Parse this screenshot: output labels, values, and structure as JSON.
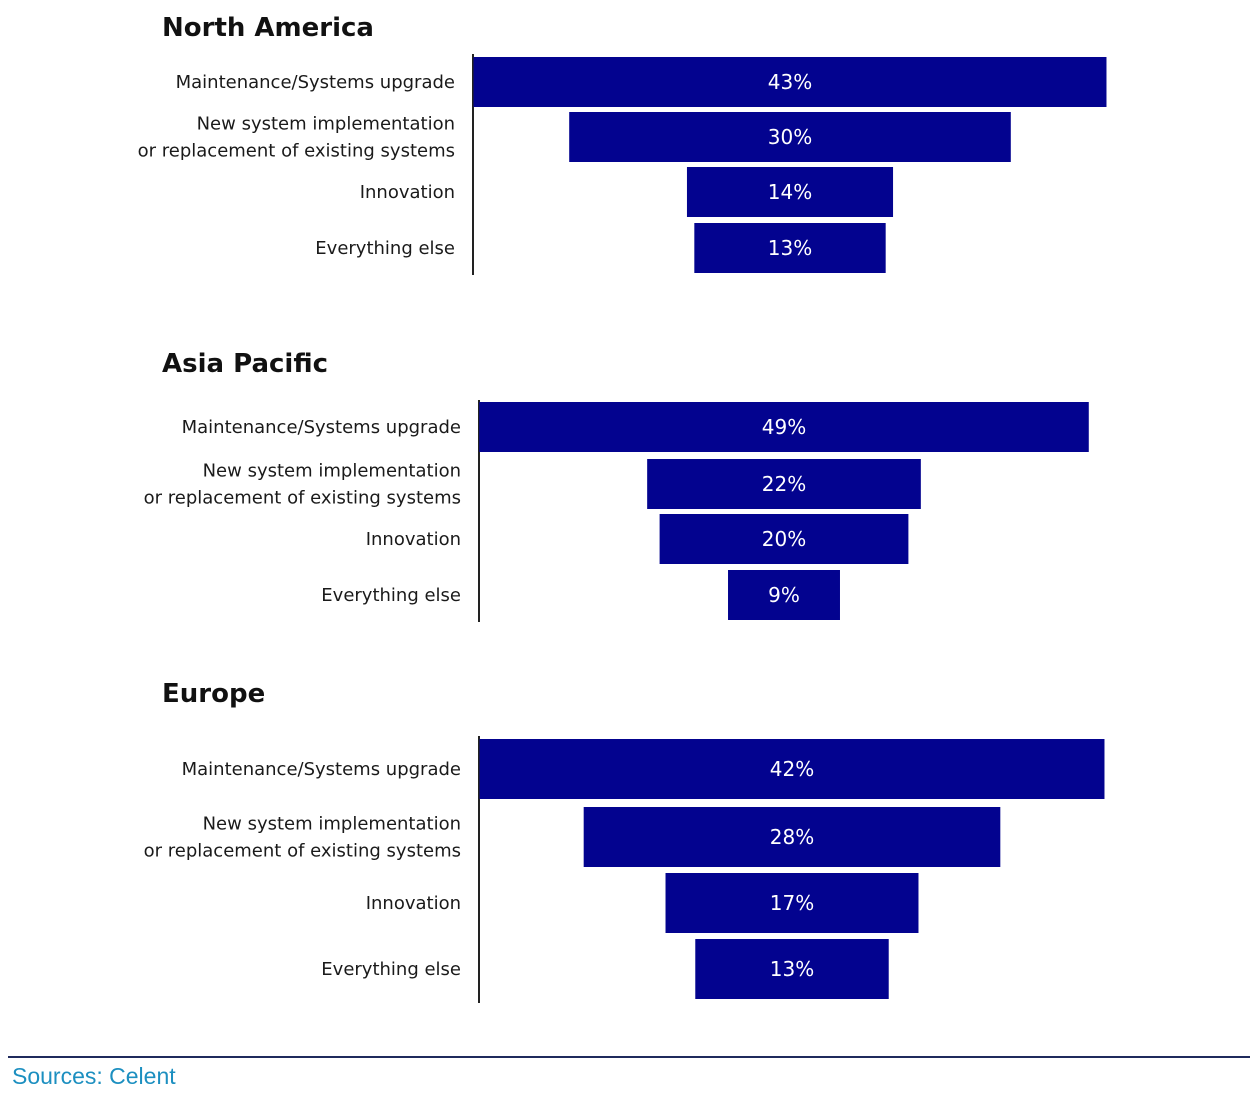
{
  "colors": {
    "bar": "#03038f",
    "axis": "#222222",
    "rule": "#1f2a5c",
    "source": "#1c8fc0"
  },
  "chart_data": [
    {
      "type": "bar",
      "orientation": "horizontal-centered-funnel",
      "title": "North America",
      "categories": [
        "Maintenance/Systems upgrade",
        "New system implementation\nor replacement of existing systems",
        "Innovation",
        "Everything else"
      ],
      "values": [
        43,
        30,
        14,
        13
      ],
      "labels": [
        "43%",
        "30%",
        "14%",
        "13%"
      ],
      "unit": "%"
    },
    {
      "type": "bar",
      "orientation": "horizontal-centered-funnel",
      "title": "Asia Pacific",
      "categories": [
        "Maintenance/Systems upgrade",
        "New system implementation\nor replacement of existing systems",
        "Innovation",
        "Everything else"
      ],
      "values": [
        49,
        22,
        20,
        9
      ],
      "labels": [
        "49%",
        "22%",
        "20%",
        "9%"
      ],
      "unit": "%"
    },
    {
      "type": "bar",
      "orientation": "horizontal-centered-funnel",
      "title": "Europe",
      "categories": [
        "Maintenance/Systems upgrade",
        "New system implementation\nor replacement of existing systems",
        "Innovation",
        "Everything else"
      ],
      "values": [
        42,
        28,
        17,
        13
      ],
      "labels": [
        "42%",
        "28%",
        "17%",
        "13%"
      ],
      "unit": "%"
    }
  ],
  "footer": {
    "source": "Sources: Celent"
  }
}
